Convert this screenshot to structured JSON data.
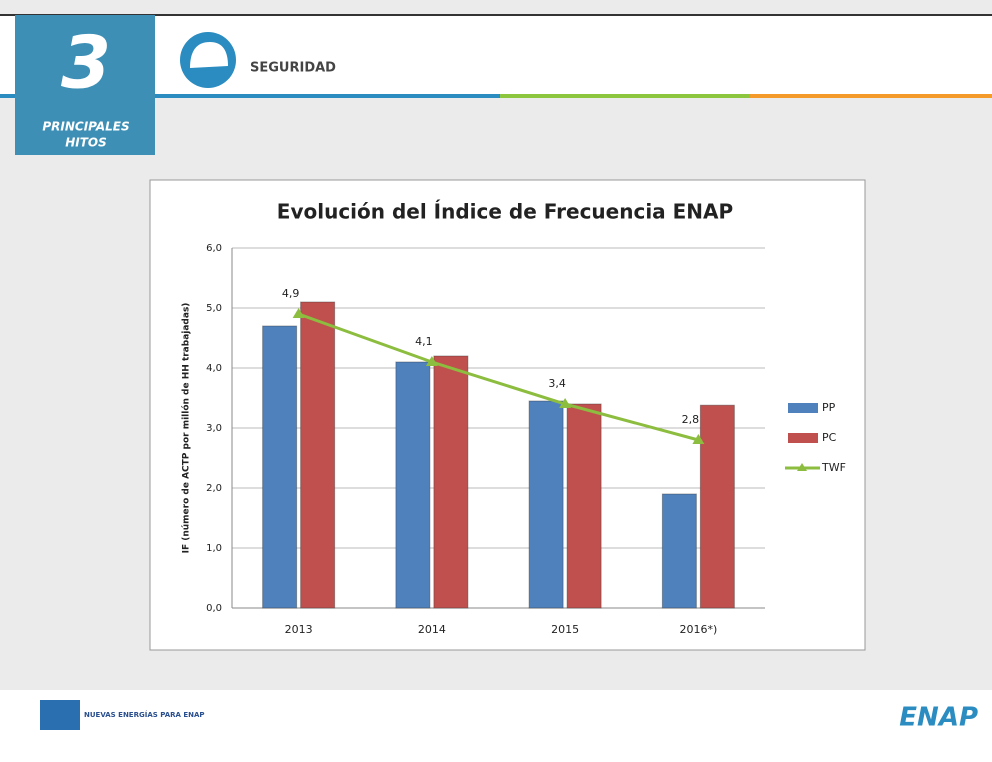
{
  "header": {
    "number": "3",
    "subtitle_line1": "PRINCIPALES",
    "subtitle_line2": "HITOS",
    "section": "SEGURIDAD"
  },
  "footer": {
    "logo_left": "NUEVAS ENERGÍAS PARA ENAP",
    "logo_right": "ENAP"
  },
  "chart_data": {
    "type": "bar",
    "title": "Evolución del Índice de Frecuencia ENAP",
    "ylabel": "IF (número de ACTP por millón de HH trabajadas)",
    "categories": [
      "2013",
      "2014",
      "2015",
      "2016*)"
    ],
    "series": [
      {
        "name": "PP",
        "color": "#4f81bd",
        "values": [
          4.7,
          4.1,
          3.45,
          1.9
        ]
      },
      {
        "name": "PC",
        "color": "#c0504d",
        "values": [
          5.1,
          4.2,
          3.4,
          3.38
        ]
      },
      {
        "name": "TWF",
        "type": "line",
        "color": "#8cbd3f",
        "values": [
          4.9,
          4.1,
          3.4,
          2.8
        ],
        "value_labels": [
          "4,9",
          "4,1",
          "3,4",
          "2,8"
        ]
      }
    ],
    "ylim": [
      0,
      6
    ],
    "yticks": [
      {
        "value": 0,
        "label": "0,0"
      },
      {
        "value": 1,
        "label": "1,0"
      },
      {
        "value": 2,
        "label": "2,0"
      },
      {
        "value": 3,
        "label": "3,0"
      },
      {
        "value": 4,
        "label": "4,0"
      },
      {
        "value": 5,
        "label": "5,0"
      },
      {
        "value": 6,
        "label": "6,0"
      }
    ],
    "grid": true,
    "legend": "right"
  }
}
